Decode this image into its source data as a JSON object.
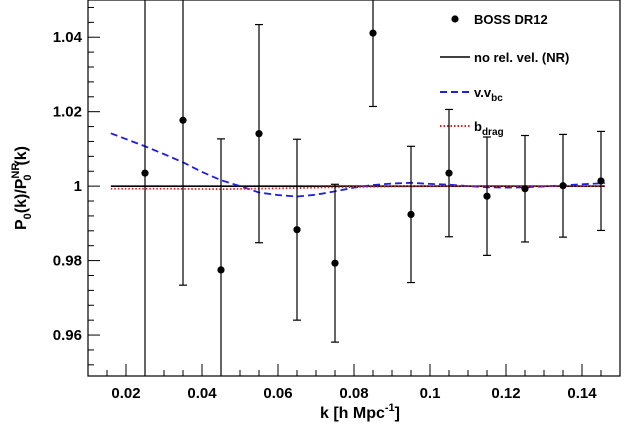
{
  "chart_data": {
    "type": "scatter",
    "title": "",
    "xlabel": "k [h Mpc^-1]",
    "ylabel": "P_0(k)/P_0^NR(k)",
    "xlim": [
      0.01,
      0.15
    ],
    "ylim": [
      0.949,
      1.05
    ],
    "grid": false,
    "legend_position": "top-right",
    "x_ticks": [
      0.02,
      0.04,
      0.06,
      0.08,
      0.1,
      0.12,
      0.14
    ],
    "x_tick_labels": [
      "0.02",
      "0.04",
      "0.06",
      "0.08",
      "0.1",
      "0.12",
      "0.14"
    ],
    "y_ticks": [
      0.96,
      0.98,
      1.0,
      1.02,
      1.04
    ],
    "y_tick_labels": [
      "0.96",
      "0.98",
      "1",
      "1.02",
      "1.04"
    ],
    "series": [
      {
        "name": "BOSS DR12",
        "kind": "points_with_errors",
        "color": "#000000",
        "x": [
          0.025,
          0.035,
          0.045,
          0.055,
          0.065,
          0.075,
          0.085,
          0.095,
          0.105,
          0.115,
          0.125,
          0.135,
          0.145
        ],
        "y": [
          1.0035,
          1.0177,
          0.9775,
          1.0141,
          0.9883,
          0.9793,
          1.0411,
          0.9924,
          1.0035,
          0.9973,
          0.9993,
          1.0001,
          1.0014
        ],
        "yerr": [
          0.06,
          0.0443,
          0.0352,
          0.0293,
          0.0243,
          0.0212,
          0.0197,
          0.0183,
          0.0171,
          0.0159,
          0.0143,
          0.0138,
          0.0133
        ]
      },
      {
        "name": "no rel. vel. (NR)",
        "kind": "line",
        "color": "#000000",
        "dash": "solid",
        "x": [
          0.016,
          0.146
        ],
        "y": [
          1.0,
          1.0
        ]
      },
      {
        "name": "v.v_bc",
        "kind": "line",
        "color": "#1f1fe0",
        "dash": "dashed",
        "x": [
          0.016,
          0.025,
          0.03,
          0.035,
          0.04,
          0.045,
          0.05,
          0.055,
          0.06,
          0.065,
          0.07,
          0.075,
          0.08,
          0.085,
          0.09,
          0.095,
          0.1,
          0.105,
          0.11,
          0.115,
          0.12,
          0.125,
          0.13,
          0.135,
          0.14,
          0.146
        ],
        "y": [
          1.0142,
          1.0107,
          1.0086,
          1.0064,
          1.0038,
          1.0016,
          1.0,
          0.9983,
          0.9976,
          0.9972,
          0.9977,
          0.9986,
          0.9996,
          1.0003,
          1.0007,
          1.0009,
          1.0006,
          1.0004,
          1.0,
          0.9997,
          0.9996,
          0.9997,
          0.9999,
          1.0002,
          1.0005,
          1.0008
        ]
      },
      {
        "name": "b_drag",
        "kind": "line",
        "color": "#e02020",
        "dash": "dotted",
        "x": [
          0.016,
          0.03,
          0.045,
          0.06,
          0.075,
          0.09,
          0.105,
          0.12,
          0.135,
          0.146
        ],
        "y": [
          0.9993,
          0.9993,
          0.9992,
          0.9994,
          0.9997,
          0.9999,
          1.0,
          1.0,
          1.0,
          1.0
        ]
      }
    ]
  }
}
